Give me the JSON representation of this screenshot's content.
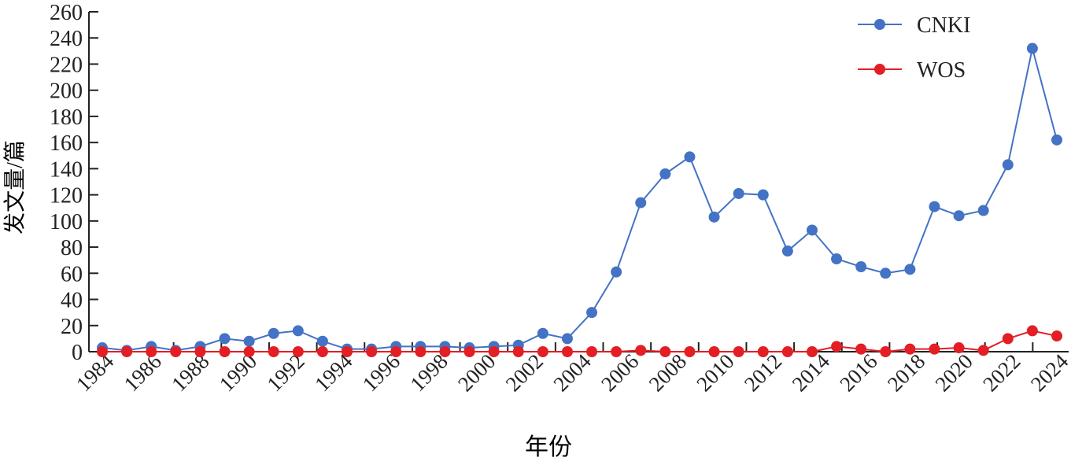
{
  "chart_data": {
    "type": "line",
    "title": "",
    "xlabel": "年份",
    "ylabel": "发文量/篇",
    "ylim": [
      0,
      260
    ],
    "y_ticks": [
      0,
      20,
      40,
      60,
      80,
      100,
      120,
      140,
      160,
      180,
      200,
      220,
      240,
      260
    ],
    "x_tick_labels": [
      "1984",
      "1986",
      "1988",
      "1990",
      "1992",
      "1994",
      "1996",
      "1998",
      "2000",
      "2002",
      "2004",
      "2006",
      "2008",
      "2010",
      "2012",
      "2014",
      "2016",
      "2018",
      "2020",
      "2022",
      "2024"
    ],
    "grid": false,
    "legend_position": "top-right",
    "series": [
      {
        "name": "CNKI",
        "color": "#4472C4",
        "values": [
          3,
          1,
          4,
          1,
          4,
          10,
          8,
          14,
          16,
          8,
          2,
          2,
          4,
          4,
          4,
          3,
          4,
          5,
          14,
          10,
          30,
          61,
          114,
          136,
          149,
          103,
          121,
          120,
          77,
          93,
          71,
          65,
          60,
          63,
          111,
          104,
          108,
          143,
          232,
          162
        ]
      },
      {
        "name": "WOS",
        "color": "#E31E24",
        "values": [
          0,
          0,
          0,
          0,
          0,
          0,
          0,
          0,
          0,
          0,
          0,
          0,
          0,
          0,
          0,
          0,
          0,
          0,
          0,
          0,
          0,
          0,
          1,
          0,
          0,
          0,
          0,
          0,
          0,
          0,
          4,
          2,
          0,
          2,
          2,
          3,
          1,
          10,
          16,
          12
        ]
      }
    ]
  }
}
